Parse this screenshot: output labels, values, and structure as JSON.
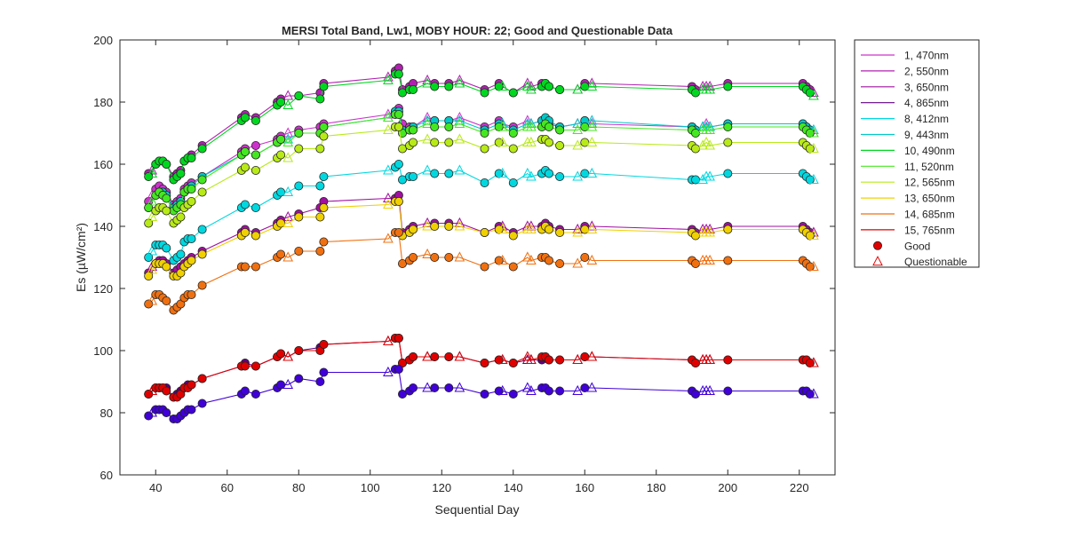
{
  "chart_data": {
    "type": "line",
    "title": "MERSI Total Band,  Lw1, MOBY HOUR: 22;  Good and Questionable Data",
    "xlabel": "Sequential Day",
    "ylabel": "Es (µW/cm²)",
    "xlim": [
      30,
      230
    ],
    "ylim": [
      60,
      200
    ],
    "xticks": [
      40,
      60,
      80,
      100,
      120,
      140,
      160,
      180,
      200,
      220
    ],
    "yticks": [
      60,
      80,
      100,
      120,
      140,
      160,
      180,
      200
    ],
    "grid": false,
    "legend_position": "outside-right",
    "x": [
      38,
      39,
      40,
      41,
      42,
      43,
      45,
      46,
      47,
      48,
      49,
      50,
      53,
      64,
      65,
      68,
      74,
      75,
      77,
      80,
      86,
      87,
      105,
      107,
      108,
      109,
      111,
      112,
      116,
      118,
      122,
      125,
      132,
      136,
      137,
      140,
      144,
      145,
      148,
      149,
      150,
      153,
      158,
      160,
      162,
      190,
      191,
      193,
      194,
      195,
      200,
      221,
      222,
      223,
      224
    ],
    "series": [
      {
        "name": "1, 470nm",
        "color": "#cc33cc",
        "values": [
          148,
          150,
          152,
          153,
          152,
          151,
          147,
          148,
          149,
          152,
          153,
          154,
          156,
          164,
          165,
          166,
          168,
          169,
          170,
          171,
          172,
          173,
          176,
          177,
          178,
          173,
          172,
          172,
          175,
          174,
          174,
          175,
          172,
          174,
          173,
          172,
          174,
          173,
          174,
          174,
          173,
          172,
          173,
          174,
          173,
          172,
          171,
          172,
          173,
          172,
          173,
          173,
          172,
          171,
          170
        ]
      },
      {
        "name": "2, 550nm",
        "color": "#b020b0",
        "values": [
          157,
          158,
          160,
          161,
          161,
          160,
          156,
          157,
          158,
          161,
          162,
          163,
          166,
          175,
          176,
          175,
          180,
          181,
          182,
          182,
          183,
          186,
          188,
          190,
          191,
          184,
          185,
          186,
          187,
          186,
          186,
          187,
          184,
          186,
          185,
          183,
          186,
          185,
          186,
          186,
          185,
          184,
          184,
          186,
          186,
          185,
          184,
          185,
          185,
          185,
          186,
          186,
          185,
          184,
          183
        ]
      },
      {
        "name": "3, 650nm",
        "color": "#a010a0",
        "values": [
          125,
          127,
          128,
          129,
          129,
          128,
          125,
          126,
          127,
          128,
          129,
          130,
          132,
          138,
          139,
          138,
          141,
          142,
          143,
          144,
          146,
          148,
          149,
          149,
          150,
          138,
          139,
          140,
          141,
          141,
          141,
          141,
          138,
          140,
          140,
          138,
          140,
          140,
          140,
          141,
          140,
          139,
          139,
          140,
          140,
          139,
          138,
          139,
          139,
          139,
          140,
          140,
          139,
          138,
          138
        ]
      },
      {
        "name": "4, 865nm",
        "color": "#600080",
        "values": [
          86,
          87,
          88,
          88,
          88,
          88,
          85,
          86,
          87,
          88,
          89,
          89,
          91,
          95,
          96,
          95,
          98,
          99,
          98,
          100,
          101,
          102,
          103,
          104,
          104,
          96,
          97,
          98,
          98,
          98,
          98,
          98,
          96,
          97,
          97,
          96,
          97,
          97,
          97,
          98,
          97,
          97,
          97,
          98,
          98,
          97,
          96,
          97,
          97,
          97,
          97,
          97,
          97,
          96,
          96
        ]
      },
      {
        "name": "8, 412nm",
        "color": "#00d8e0",
        "values": [
          130,
          132,
          134,
          134,
          134,
          133,
          129,
          130,
          131,
          135,
          136,
          136,
          139,
          146,
          147,
          146,
          150,
          151,
          151,
          153,
          153,
          156,
          158,
          159,
          160,
          155,
          156,
          156,
          158,
          157,
          157,
          158,
          154,
          157,
          157,
          154,
          157,
          156,
          157,
          158,
          157,
          156,
          156,
          157,
          157,
          155,
          155,
          155,
          156,
          156,
          157,
          157,
          156,
          155,
          155
        ]
      },
      {
        "name": "9, 443nm",
        "color": "#00c8c8",
        "values": [
          146,
          148,
          150,
          151,
          151,
          150,
          146,
          147,
          148,
          151,
          152,
          153,
          156,
          163,
          164,
          163,
          167,
          168,
          168,
          170,
          170,
          172,
          175,
          177,
          177,
          171,
          171,
          172,
          174,
          174,
          174,
          174,
          171,
          173,
          173,
          171,
          173,
          173,
          174,
          175,
          174,
          172,
          173,
          174,
          174,
          172,
          171,
          172,
          172,
          172,
          173,
          173,
          172,
          171,
          171
        ]
      },
      {
        "name": "10, 490nm",
        "color": "#00d820",
        "values": [
          156,
          157,
          160,
          161,
          161,
          160,
          155,
          156,
          157,
          161,
          162,
          162,
          165,
          174,
          175,
          174,
          179,
          180,
          179,
          182,
          181,
          185,
          187,
          189,
          189,
          183,
          184,
          184,
          186,
          185,
          185,
          186,
          183,
          185,
          185,
          183,
          185,
          184,
          185,
          186,
          185,
          184,
          184,
          185,
          185,
          184,
          183,
          184,
          184,
          184,
          185,
          185,
          184,
          183,
          182
        ]
      },
      {
        "name": "11, 520nm",
        "color": "#44e820",
        "values": [
          146,
          148,
          150,
          151,
          150,
          149,
          145,
          146,
          147,
          151,
          152,
          152,
          155,
          163,
          164,
          163,
          167,
          168,
          167,
          170,
          170,
          172,
          175,
          176,
          176,
          170,
          171,
          171,
          173,
          172,
          172,
          173,
          170,
          172,
          172,
          170,
          172,
          172,
          172,
          173,
          172,
          171,
          171,
          172,
          172,
          171,
          170,
          171,
          171,
          171,
          172,
          172,
          171,
          170,
          170
        ]
      },
      {
        "name": "12, 565nm",
        "color": "#b8ea18",
        "values": [
          141,
          143,
          145,
          146,
          146,
          145,
          141,
          142,
          143,
          146,
          147,
          148,
          151,
          158,
          159,
          158,
          162,
          163,
          162,
          165,
          165,
          169,
          171,
          172,
          172,
          165,
          166,
          167,
          168,
          167,
          167,
          168,
          165,
          167,
          167,
          165,
          167,
          167,
          168,
          168,
          167,
          166,
          166,
          167,
          167,
          166,
          165,
          166,
          167,
          166,
          167,
          167,
          166,
          165,
          165
        ]
      },
      {
        "name": "13, 650nm",
        "color": "#f0d000",
        "values": [
          124,
          126,
          128,
          128,
          128,
          127,
          124,
          124,
          125,
          127,
          128,
          129,
          131,
          137,
          138,
          137,
          140,
          141,
          141,
          143,
          143,
          146,
          147,
          148,
          148,
          137,
          138,
          139,
          140,
          140,
          140,
          140,
          138,
          139,
          139,
          137,
          139,
          139,
          139,
          140,
          139,
          138,
          138,
          139,
          139,
          138,
          137,
          138,
          138,
          138,
          139,
          139,
          138,
          137,
          137
        ]
      },
      {
        "name": "14, 685nm",
        "color": "#f07010",
        "values": [
          115,
          116,
          118,
          118,
          117,
          116,
          113,
          114,
          115,
          117,
          118,
          118,
          121,
          127,
          127,
          127,
          130,
          131,
          130,
          132,
          132,
          135,
          136,
          138,
          138,
          128,
          129,
          130,
          131,
          130,
          130,
          130,
          127,
          129,
          129,
          127,
          130,
          129,
          130,
          130,
          129,
          128,
          128,
          130,
          129,
          129,
          128,
          129,
          129,
          129,
          129,
          129,
          128,
          127,
          127
        ]
      },
      {
        "name": "15, 765nm",
        "color": "#e00000",
        "values": [
          86,
          87,
          88,
          88,
          88,
          87,
          85,
          85,
          86,
          88,
          88,
          89,
          91,
          95,
          95,
          95,
          98,
          99,
          98,
          100,
          100,
          102,
          103,
          104,
          104,
          96,
          97,
          98,
          98,
          98,
          98,
          98,
          96,
          97,
          97,
          96,
          98,
          97,
          98,
          98,
          97,
          97,
          97,
          98,
          98,
          97,
          96,
          97,
          97,
          97,
          97,
          97,
          97,
          96,
          96
        ]
      },
      {
        "name": "",
        "color": "#4000d8",
        "values": [
          79,
          80,
          81,
          81,
          81,
          80,
          78,
          78,
          79,
          80,
          81,
          81,
          83,
          86,
          87,
          86,
          88,
          89,
          89,
          91,
          90,
          93,
          93,
          94,
          94,
          86,
          87,
          88,
          88,
          88,
          88,
          88,
          86,
          87,
          87,
          86,
          88,
          87,
          88,
          88,
          87,
          87,
          87,
          88,
          88,
          87,
          86,
          87,
          87,
          87,
          87,
          87,
          87,
          86,
          86
        ]
      }
    ],
    "quality": [
      "good",
      "questionable",
      "good",
      "good",
      "good",
      "good",
      "good",
      "good",
      "good",
      "good",
      "good",
      "good",
      "good",
      "good",
      "good",
      "good",
      "good",
      "good",
      "questionable",
      "good",
      "good",
      "good",
      "questionable",
      "good",
      "good",
      "good",
      "good",
      "good",
      "questionable",
      "good",
      "good",
      "questionable",
      "good",
      "good",
      "questionable",
      "good",
      "questionable",
      "questionable",
      "good",
      "good",
      "good",
      "good",
      "questionable",
      "good",
      "questionable",
      "good",
      "good",
      "questionable",
      "questionable",
      "questionable",
      "good",
      "good",
      "good",
      "good",
      "questionable"
    ],
    "legend_markers": [
      {
        "label": "Good",
        "marker": "filled-circle",
        "color": "#e00000"
      },
      {
        "label": "Questionable",
        "marker": "open-triangle",
        "color": "#e00000"
      }
    ]
  }
}
